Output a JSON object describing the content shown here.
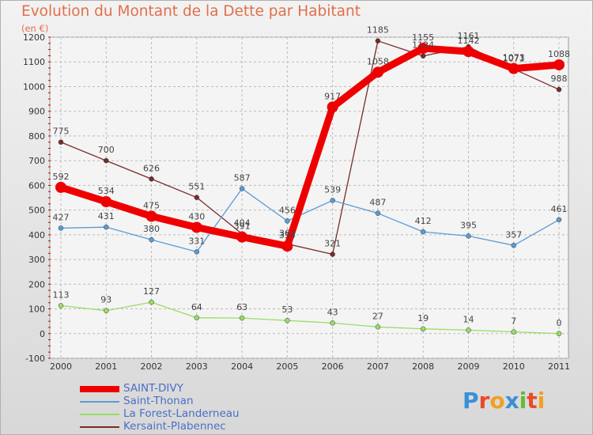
{
  "header": {
    "title": "Evolution du Montant de la Dette par Habitant",
    "unit": "(en €)"
  },
  "chart_data": {
    "type": "line",
    "x": [
      "2000",
      "2001",
      "2002",
      "2003",
      "2004",
      "2005",
      "2006",
      "2007",
      "2008",
      "2009",
      "2010",
      "2011"
    ],
    "ylim": [
      -100,
      1200
    ],
    "yticks": [
      -100,
      0,
      100,
      200,
      300,
      400,
      500,
      600,
      700,
      800,
      900,
      1000,
      1100,
      1200
    ],
    "grid": true,
    "legend_position": "bottom-left",
    "series": [
      {
        "name": "SAINT-DIVY",
        "color": "#ee0000",
        "values": [
          592,
          534,
          475,
          430,
          391,
          354,
          917,
          1058,
          1155,
          1142,
          1073,
          1088
        ],
        "labels": [
          "592",
          "534",
          "475",
          "430",
          "391",
          "354",
          "917",
          "1058",
          "1155",
          "1142",
          "1073",
          "1088"
        ]
      },
      {
        "name": "Saint-Thonan",
        "color": "#5b9bd5",
        "values": [
          427,
          431,
          380,
          331,
          587,
          456,
          539,
          487,
          412,
          395,
          357,
          461
        ],
        "labels": [
          "427",
          "431",
          "380",
          "331",
          "587",
          "456",
          "539",
          "487",
          "412",
          "395",
          "357",
          "461"
        ]
      },
      {
        "name": "La Forest-Landerneau",
        "color": "#99dd66",
        "values": [
          113,
          93,
          127,
          64,
          63,
          53,
          43,
          27,
          19,
          14,
          7,
          0
        ],
        "labels": [
          "113",
          "93",
          "127",
          "64",
          "63",
          "53",
          "43",
          "27",
          "19",
          "14",
          "7",
          "0"
        ]
      },
      {
        "name": "Kersaint-Plabennec",
        "color": "#7a2a2a",
        "values": [
          775,
          700,
          626,
          551,
          404,
          363,
          321,
          1185,
          1124,
          1161,
          1071,
          988
        ],
        "labels": [
          "775",
          "700",
          "626",
          "551",
          "404",
          "363",
          "321",
          "1185",
          "1124",
          "1161",
          "1071",
          "988"
        ]
      }
    ]
  },
  "logo": {
    "letters": [
      "P",
      "r",
      "o",
      "x",
      "i",
      "t",
      "i"
    ],
    "colors": [
      "#3a8fd8",
      "#e84a2a",
      "#f0a020",
      "#3a8fd8",
      "#66bb33",
      "#e84a2a",
      "#f0a020"
    ]
  }
}
